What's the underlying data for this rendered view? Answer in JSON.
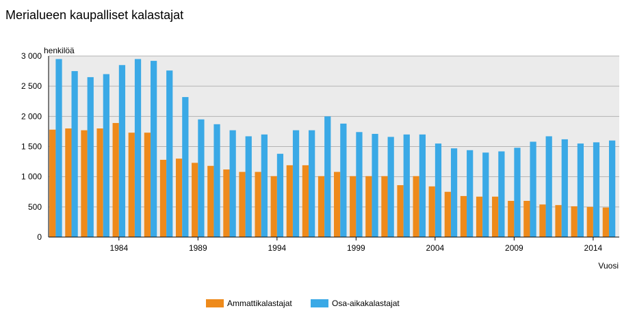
{
  "chart_data": {
    "type": "bar",
    "title": "Merialueen kaupalliset kalastajat",
    "ylabel": "henkilöä",
    "xlabel": "Vuosi",
    "ylim": [
      0,
      3000
    ],
    "yticks": [
      0,
      500,
      1000,
      1500,
      2000,
      2500,
      3000
    ],
    "ytick_labels": [
      "0",
      "500",
      "1 000",
      "1 500",
      "2 000",
      "2 500",
      "3 000"
    ],
    "xtick_labels": [
      "1984",
      "1989",
      "1994",
      "1999",
      "2004",
      "2009",
      "2014"
    ],
    "categories": [
      "1980",
      "1981",
      "1982",
      "1983",
      "1984",
      "1985",
      "1986",
      "1987",
      "1988",
      "1989",
      "1990",
      "1991",
      "1992",
      "1993",
      "1994",
      "1995",
      "1996",
      "1997",
      "1998",
      "1999",
      "2000",
      "2001",
      "2002",
      "2003",
      "2004",
      "2005",
      "2006",
      "2007",
      "2008",
      "2009",
      "2010",
      "2011",
      "2012",
      "2013",
      "2014",
      "2015"
    ],
    "grid": true,
    "legend_position": "bottom",
    "series": [
      {
        "name": "Ammattikalastajat",
        "color": "#ee8a1b",
        "values": [
          1780,
          1800,
          1770,
          1800,
          1890,
          1730,
          1730,
          1280,
          1300,
          1230,
          1180,
          1120,
          1080,
          1080,
          1010,
          1190,
          1190,
          1010,
          1080,
          1010,
          1010,
          1010,
          860,
          1010,
          840,
          750,
          680,
          670,
          670,
          600,
          600,
          540,
          530,
          510,
          500,
          490
        ]
      },
      {
        "name": "Osa-aikakalastajat",
        "color": "#3aa9e6",
        "values": [
          2950,
          2750,
          2650,
          2700,
          2850,
          2950,
          2920,
          2760,
          2320,
          1950,
          1870,
          1770,
          1670,
          1700,
          1380,
          1770,
          1770,
          2000,
          1880,
          1740,
          1710,
          1660,
          1700,
          1700,
          1550,
          1470,
          1440,
          1400,
          1420,
          1480,
          1580,
          1670,
          1620,
          1550,
          1570,
          1600
        ]
      }
    ]
  }
}
